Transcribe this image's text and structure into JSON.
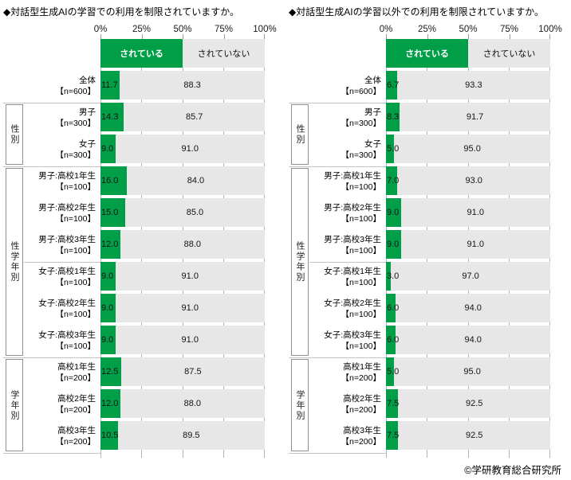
{
  "footer": "©学研教育総合研究所",
  "charts": [
    {
      "title": "◆対話型生成AIの学習での利用を制限されていますか。",
      "axis_ticks": [
        "0%",
        "25%",
        "50%",
        "75%",
        "100%"
      ],
      "legend": {
        "yes_label": "されている",
        "no_label": "されていない",
        "yes_color": "#009E47",
        "no_color": "#e7e7e7"
      },
      "groups": [
        {
          "label": "性別",
          "start": 1,
          "span": 2
        },
        {
          "label": "性学年別",
          "start": 3,
          "span": 6
        },
        {
          "label": "学年別",
          "start": 9,
          "span": 3
        }
      ],
      "sub_divider_row": 6,
      "rows": [
        {
          "label": "全体",
          "n": "【n=600】",
          "yes": "11.7",
          "no": "88.3"
        },
        {
          "label": "男子",
          "n": "【n=300】",
          "yes": "14.3",
          "no": "85.7"
        },
        {
          "label": "女子",
          "n": "【n=300】",
          "yes": "9.0",
          "no": "91.0"
        },
        {
          "label": "男子:高校1年生",
          "n": "【n=100】",
          "yes": "16.0",
          "no": "84.0"
        },
        {
          "label": "男子:高校2年生",
          "n": "【n=100】",
          "yes": "15.0",
          "no": "85.0"
        },
        {
          "label": "男子:高校3年生",
          "n": "【n=100】",
          "yes": "12.0",
          "no": "88.0"
        },
        {
          "label": "女子:高校1年生",
          "n": "【n=100】",
          "yes": "9.0",
          "no": "91.0"
        },
        {
          "label": "女子:高校2年生",
          "n": "【n=100】",
          "yes": "9.0",
          "no": "91.0"
        },
        {
          "label": "女子:高校3年生",
          "n": "【n=100】",
          "yes": "9.0",
          "no": "91.0"
        },
        {
          "label": "高校1年生",
          "n": "【n=200】",
          "yes": "12.5",
          "no": "87.5"
        },
        {
          "label": "高校2年生",
          "n": "【n=200】",
          "yes": "12.0",
          "no": "88.0"
        },
        {
          "label": "高校3年生",
          "n": "【n=200】",
          "yes": "10.5",
          "no": "89.5"
        }
      ]
    },
    {
      "title": "◆対話型生成AIの学習以外での利用を制限されていますか。",
      "axis_ticks": [
        "0%",
        "25%",
        "50%",
        "75%",
        "100%"
      ],
      "legend": {
        "yes_label": "されている",
        "no_label": "されていない",
        "yes_color": "#009E47",
        "no_color": "#e7e7e7"
      },
      "groups": [
        {
          "label": "性別",
          "start": 1,
          "span": 2
        },
        {
          "label": "性学年別",
          "start": 3,
          "span": 6
        },
        {
          "label": "学年別",
          "start": 9,
          "span": 3
        }
      ],
      "sub_divider_row": 6,
      "rows": [
        {
          "label": "全体",
          "n": "【n=600】",
          "yes": "6.7",
          "no": "93.3"
        },
        {
          "label": "男子",
          "n": "【n=300】",
          "yes": "8.3",
          "no": "91.7"
        },
        {
          "label": "女子",
          "n": "【n=300】",
          "yes": "5.0",
          "no": "95.0"
        },
        {
          "label": "男子:高校1年生",
          "n": "【n=100】",
          "yes": "7.0",
          "no": "93.0"
        },
        {
          "label": "男子:高校2年生",
          "n": "【n=100】",
          "yes": "9.0",
          "no": "91.0"
        },
        {
          "label": "男子:高校3年生",
          "n": "【n=100】",
          "yes": "9.0",
          "no": "91.0"
        },
        {
          "label": "女子:高校1年生",
          "n": "【n=100】",
          "yes": "3.0",
          "no": "97.0"
        },
        {
          "label": "女子:高校2年生",
          "n": "【n=100】",
          "yes": "6.0",
          "no": "94.0"
        },
        {
          "label": "女子:高校3年生",
          "n": "【n=100】",
          "yes": "6.0",
          "no": "94.0"
        },
        {
          "label": "高校1年生",
          "n": "【n=200】",
          "yes": "5.0",
          "no": "95.0"
        },
        {
          "label": "高校2年生",
          "n": "【n=200】",
          "yes": "7.5",
          "no": "92.5"
        },
        {
          "label": "高校3年生",
          "n": "【n=200】",
          "yes": "7.5",
          "no": "92.5"
        }
      ]
    }
  ],
  "chart_data": [
    {
      "type": "bar",
      "stacked": true,
      "orientation": "horizontal",
      "title": "◆対話型生成AIの学習での利用を制限されていますか。",
      "categories": [
        "全体【n=600】",
        "男子【n=300】",
        "女子【n=300】",
        "男子:高校1年生【n=100】",
        "男子:高校2年生【n=100】",
        "男子:高校3年生【n=100】",
        "女子:高校1年生【n=100】",
        "女子:高校2年生【n=100】",
        "女子:高校3年生【n=100】",
        "高校1年生【n=200】",
        "高校2年生【n=200】",
        "高校3年生【n=200】"
      ],
      "series": [
        {
          "name": "されている",
          "color": "#009E47",
          "values": [
            11.7,
            14.3,
            9.0,
            16.0,
            15.0,
            12.0,
            9.0,
            9.0,
            9.0,
            12.5,
            12.0,
            10.5
          ]
        },
        {
          "name": "されていない",
          "color": "#e7e7e7",
          "values": [
            88.3,
            85.7,
            91.0,
            84.0,
            85.0,
            88.0,
            91.0,
            91.0,
            91.0,
            87.5,
            88.0,
            89.5
          ]
        }
      ],
      "xlim": [
        0,
        100
      ],
      "x_ticks": [
        "0%",
        "25%",
        "50%",
        "75%",
        "100%"
      ],
      "legend_position": "top",
      "grid": false
    },
    {
      "type": "bar",
      "stacked": true,
      "orientation": "horizontal",
      "title": "◆対話型生成AIの学習以外での利用を制限されていますか。",
      "categories": [
        "全体【n=600】",
        "男子【n=300】",
        "女子【n=300】",
        "男子:高校1年生【n=100】",
        "男子:高校2年生【n=100】",
        "男子:高校3年生【n=100】",
        "女子:高校1年生【n=100】",
        "女子:高校2年生【n=100】",
        "女子:高校3年生【n=100】",
        "高校1年生【n=200】",
        "高校2年生【n=200】",
        "高校3年生【n=200】"
      ],
      "series": [
        {
          "name": "されている",
          "color": "#009E47",
          "values": [
            6.7,
            8.3,
            5.0,
            7.0,
            9.0,
            9.0,
            3.0,
            6.0,
            6.0,
            5.0,
            7.5,
            7.5
          ]
        },
        {
          "name": "されていない",
          "color": "#e7e7e7",
          "values": [
            93.3,
            91.7,
            95.0,
            93.0,
            91.0,
            91.0,
            97.0,
            94.0,
            94.0,
            95.0,
            92.5,
            92.5
          ]
        }
      ],
      "xlim": [
        0,
        100
      ],
      "x_ticks": [
        "0%",
        "25%",
        "50%",
        "75%",
        "100%"
      ],
      "legend_position": "top",
      "grid": false
    }
  ]
}
